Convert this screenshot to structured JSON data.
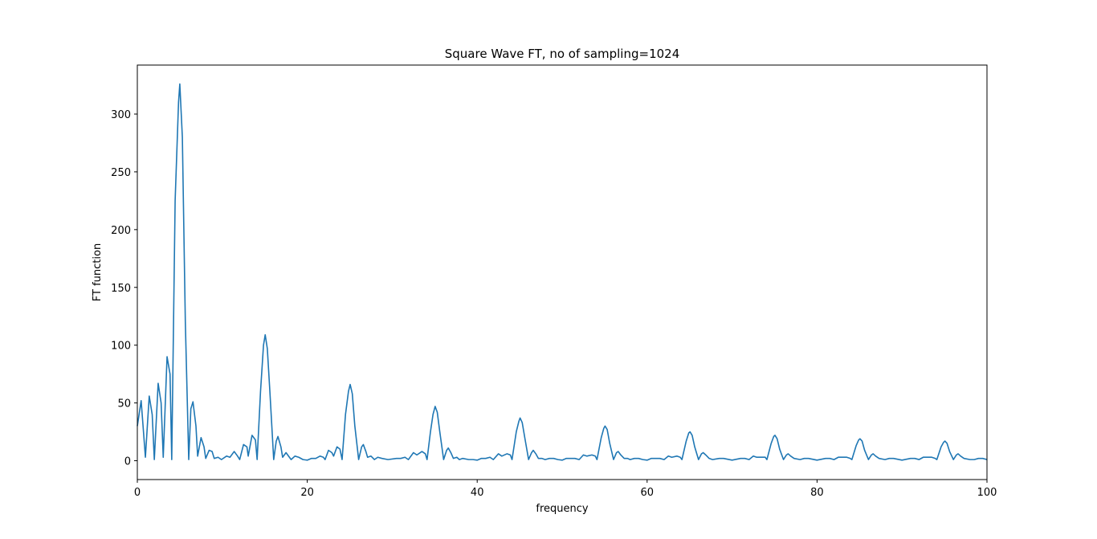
{
  "chart_data": {
    "type": "line",
    "title": "Square Wave FT, no of sampling=1024",
    "x_label": "frequency",
    "y_label": "FT function",
    "xlim": [
      0,
      100
    ],
    "ylim": [
      -16.3,
      342.4
    ],
    "xticks": [
      0,
      20,
      40,
      60,
      80,
      100
    ],
    "yticks": [
      0,
      50,
      100,
      150,
      200,
      250,
      300
    ],
    "grid": false,
    "series": [
      {
        "color": "#1f77b4",
        "x": [
          0,
          0.45,
          0.95,
          1.4,
          1.75,
          2.0,
          2.45,
          2.8,
          3.05,
          3.5,
          3.85,
          4.05,
          4.45,
          4.85,
          5.0,
          5.3,
          5.65,
          6.05,
          6.3,
          6.55,
          6.9,
          7.1,
          7.5,
          7.85,
          8.05,
          8.45,
          8.8,
          9.05,
          9.5,
          9.9,
          10.5,
          10.9,
          11.4,
          11.8,
          12.05,
          12.5,
          12.9,
          13.05,
          13.5,
          13.9,
          14.1,
          14.5,
          14.85,
          15.05,
          15.3,
          15.6,
          16.05,
          16.35,
          16.55,
          16.9,
          17.1,
          17.5,
          17.9,
          18.1,
          18.55,
          19,
          19.5,
          20,
          20.5,
          21,
          21.5,
          21.9,
          22.1,
          22.5,
          22.9,
          23.1,
          23.5,
          23.85,
          24.1,
          24.5,
          24.85,
          25.05,
          25.3,
          25.6,
          26.05,
          26.4,
          26.6,
          26.9,
          27.1,
          27.5,
          27.9,
          28.3,
          28.8,
          29.5,
          30.5,
          31,
          31.5,
          31.9,
          32.5,
          32.9,
          33.5,
          33.9,
          34.1,
          34.5,
          34.8,
          35.05,
          35.3,
          35.6,
          36.05,
          36.4,
          36.6,
          36.9,
          37.2,
          37.6,
          37.9,
          38.3,
          39,
          39.5,
          40,
          40.5,
          41,
          41.5,
          41.9,
          42.5,
          42.9,
          43.5,
          43.9,
          44.1,
          44.6,
          44.9,
          45.05,
          45.3,
          45.6,
          46.05,
          46.4,
          46.6,
          46.9,
          47.2,
          47.6,
          48,
          48.5,
          49,
          49.5,
          50,
          50.5,
          51,
          51.5,
          52,
          52.5,
          52.9,
          53.5,
          53.9,
          54.1,
          54.6,
          54.9,
          55.05,
          55.3,
          55.6,
          56.05,
          56.4,
          56.6,
          56.9,
          57.3,
          57.7,
          58,
          58.5,
          59,
          59.5,
          60,
          60.5,
          61,
          61.5,
          62,
          62.5,
          62.9,
          63.5,
          63.9,
          64.1,
          64.6,
          64.9,
          65.05,
          65.3,
          65.6,
          66.05,
          66.4,
          66.6,
          66.9,
          67.3,
          67.7,
          68.5,
          69,
          70,
          71,
          71.5,
          72,
          72.5,
          72.9,
          73.5,
          73.9,
          74.1,
          74.6,
          74.9,
          75.05,
          75.3,
          75.6,
          76.05,
          76.4,
          76.6,
          76.9,
          77.3,
          78,
          78.5,
          79,
          80,
          81,
          81.5,
          82,
          82.5,
          82.9,
          83.5,
          83.9,
          84.1,
          84.6,
          84.9,
          85.05,
          85.3,
          85.6,
          86.05,
          86.4,
          86.6,
          86.9,
          87.3,
          88,
          88.5,
          89,
          90,
          91,
          91.5,
          92,
          92.5,
          92.9,
          93.5,
          93.9,
          94.1,
          94.6,
          94.9,
          95.05,
          95.3,
          95.6,
          96.05,
          96.4,
          96.6,
          96.9,
          97.3,
          98,
          98.5,
          99,
          99.5,
          100
        ],
        "values": [
          30,
          52,
          3,
          56,
          40,
          1,
          67,
          50,
          3,
          90,
          75,
          1,
          225,
          310,
          326,
          280,
          120,
          1,
          45,
          51,
          30,
          4,
          20,
          12,
          2,
          9,
          8,
          2,
          3,
          1,
          4,
          3,
          8,
          4,
          1,
          14,
          12,
          4,
          22,
          18,
          1,
          60,
          100,
          109,
          97,
          60,
          1,
          17,
          21,
          12,
          3,
          7,
          3,
          1,
          4,
          3,
          1,
          0.5,
          2,
          2,
          4,
          3,
          1,
          9,
          7,
          4,
          12,
          10,
          1,
          40,
          60,
          66,
          58,
          30,
          1,
          12,
          14,
          8,
          3,
          4,
          1,
          3,
          2,
          1,
          2,
          2,
          3,
          1,
          7,
          5,
          8,
          6,
          1,
          25,
          40,
          47,
          42,
          25,
          1,
          9,
          11,
          7,
          2,
          3,
          1,
          2,
          1,
          1,
          0.5,
          2,
          2,
          3,
          1,
          6,
          4,
          6,
          5,
          1,
          25,
          34,
          37,
          33,
          20,
          1,
          7,
          9,
          6,
          2,
          2,
          1,
          2,
          2,
          1,
          0.5,
          2,
          2,
          2,
          1,
          5,
          4,
          5,
          4,
          1,
          20,
          28,
          30,
          27,
          15,
          1,
          7,
          8,
          5,
          2,
          2,
          1,
          2,
          2,
          1,
          0.5,
          2,
          2,
          2,
          1,
          4,
          3,
          4,
          3,
          1,
          17,
          24,
          25,
          22,
          12,
          1,
          6,
          7,
          5,
          2,
          1,
          2,
          2,
          0.5,
          2,
          2,
          1,
          4,
          3,
          3,
          3,
          1,
          15,
          21,
          22,
          19,
          10,
          1,
          5,
          6,
          4,
          2,
          1,
          2,
          2,
          0.5,
          2,
          2,
          1,
          3,
          3,
          3,
          2,
          1,
          13,
          18,
          19,
          17,
          9,
          1,
          5,
          6,
          4,
          2,
          1,
          2,
          2,
          0.5,
          2,
          2,
          1,
          3,
          3,
          3,
          2,
          1,
          12,
          16,
          17,
          15,
          8,
          1,
          5,
          6,
          4,
          2,
          1,
          1,
          2,
          2,
          1
        ]
      }
    ]
  }
}
